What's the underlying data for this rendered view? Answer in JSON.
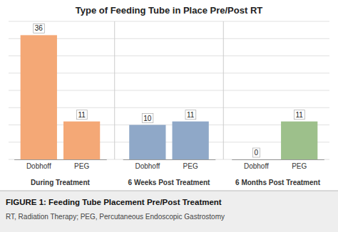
{
  "chart_data": {
    "type": "bar",
    "title": "Type of Feeding Tube in Place Pre/Post RT",
    "categories": [
      "Dobhoff",
      "PEG"
    ],
    "series": [
      {
        "name": "During Treatment",
        "color": "#F4A876",
        "values": [
          36,
          11
        ]
      },
      {
        "name": "6 Weeks Post Treatment",
        "color": "#8FA8C8",
        "values": [
          10,
          11
        ]
      },
      {
        "name": "6 Months Post Treatment",
        "color": "#9DC08B",
        "values": [
          0,
          11
        ]
      }
    ],
    "ylim": [
      0,
      40
    ],
    "yticks": [
      0,
      5,
      10,
      15,
      20,
      25,
      30,
      35,
      40
    ],
    "grid": true,
    "data_labels": true,
    "tick_labels": "x",
    "annotations": [
      "FIGURE 1: Feeding Tube Placement Pre/Post Treatment",
      "RT, Radiation Therapy; PEG, Percutaneous Endoscopic Gastrostomy"
    ]
  }
}
